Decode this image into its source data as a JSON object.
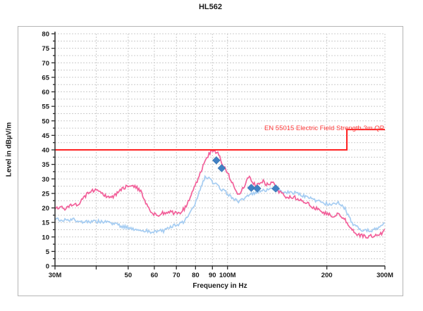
{
  "window": {
    "title": "HL562"
  },
  "chart_data": {
    "type": "line",
    "title": "HL562",
    "xlabel": "Frequency in Hz",
    "ylabel": "Level in dBµV/m",
    "x_scale": "log",
    "x_range_mhz": [
      30,
      300
    ],
    "ylim": [
      0,
      80
    ],
    "y_tick_step": 5,
    "y_minor_step": 2.5,
    "y_ticks": [
      0,
      5,
      10,
      15,
      20,
      25,
      30,
      35,
      40,
      45,
      50,
      55,
      60,
      65,
      70,
      75,
      80
    ],
    "x_ticks": [
      {
        "f_mhz": 30,
        "label": "30M"
      },
      {
        "f_mhz": 40,
        "label": ""
      },
      {
        "f_mhz": 50,
        "label": "50"
      },
      {
        "f_mhz": 60,
        "label": "60"
      },
      {
        "f_mhz": 70,
        "label": "70"
      },
      {
        "f_mhz": 80,
        "label": "80"
      },
      {
        "f_mhz": 90,
        "label": "90"
      },
      {
        "f_mhz": 100,
        "label": "100M"
      },
      {
        "f_mhz": 200,
        "label": "200"
      },
      {
        "f_mhz": 300,
        "label": "300M"
      }
    ],
    "grid": "dashed",
    "grid_vertical_mhz": [
      40,
      50,
      60,
      70,
      80,
      90,
      100,
      200,
      300
    ],
    "legend": "none",
    "colors": {
      "peak_trace": "#f2609a",
      "average_trace": "#a6cdf2",
      "marker": "#4181c4",
      "marker_edge": "#2f66a0",
      "limit_line": "#ff2222",
      "limit_label": "#ff3b3b",
      "grid": "#cccccc",
      "axis": "#2b2b2b",
      "tick_text": "#1a1a1a",
      "frame": "#b5b5b5"
    },
    "series": [
      {
        "name": "peak-trace",
        "style": "noisy-line",
        "points": [
          [
            30,
            19.5
          ],
          [
            31,
            20.3
          ],
          [
            32,
            19.8
          ],
          [
            33,
            20.5
          ],
          [
            34,
            21.2
          ],
          [
            35,
            21
          ],
          [
            36,
            22.5
          ],
          [
            37,
            24
          ],
          [
            38,
            25.3
          ],
          [
            39,
            26
          ],
          [
            40,
            26.5
          ],
          [
            41,
            25.8
          ],
          [
            42,
            24.5
          ],
          [
            43,
            23.8
          ],
          [
            44,
            24.2
          ],
          [
            45,
            24
          ],
          [
            46,
            24.8
          ],
          [
            47,
            25.6
          ],
          [
            48,
            26.5
          ],
          [
            49,
            27.2
          ],
          [
            50,
            27.8
          ],
          [
            51,
            28
          ],
          [
            52,
            27.6
          ],
          [
            53,
            27
          ],
          [
            54,
            26.2
          ],
          [
            55,
            25
          ],
          [
            56,
            23
          ],
          [
            57,
            21
          ],
          [
            58,
            19.5
          ],
          [
            59,
            18.3
          ],
          [
            60,
            17.8
          ],
          [
            61,
            17.3
          ],
          [
            62,
            17.8
          ],
          [
            63,
            18.4
          ],
          [
            64,
            18
          ],
          [
            65,
            17.6
          ],
          [
            66,
            18.2
          ],
          [
            67,
            18.8
          ],
          [
            68,
            18.4
          ],
          [
            69,
            18
          ],
          [
            70,
            18.4
          ],
          [
            71,
            18
          ],
          [
            72,
            18.3
          ],
          [
            73,
            19
          ],
          [
            74,
            19.8
          ],
          [
            75,
            21
          ],
          [
            76,
            22.3
          ],
          [
            77,
            23.8
          ],
          [
            78,
            25.2
          ],
          [
            79,
            26.6
          ],
          [
            80,
            28
          ],
          [
            81,
            29.5
          ],
          [
            82,
            31
          ],
          [
            83,
            32.5
          ],
          [
            84,
            34
          ],
          [
            85,
            35.2
          ],
          [
            86,
            36.4
          ],
          [
            87,
            37.5
          ],
          [
            88,
            38.5
          ],
          [
            89,
            39.2
          ],
          [
            90,
            39.6
          ],
          [
            91,
            39.7
          ],
          [
            92,
            39.5
          ],
          [
            93,
            39
          ],
          [
            94,
            38.2
          ],
          [
            95,
            37
          ],
          [
            96,
            35.8
          ],
          [
            97,
            34.6
          ],
          [
            98,
            33.6
          ],
          [
            99,
            32.8
          ],
          [
            100,
            32
          ],
          [
            102,
            30
          ],
          [
            104,
            27.8
          ],
          [
            106,
            25.8
          ],
          [
            108,
            24.6
          ],
          [
            110,
            25.5
          ],
          [
            112,
            27.2
          ],
          [
            114,
            29
          ],
          [
            115,
            30.2
          ],
          [
            116,
            30.6
          ],
          [
            118,
            29.6
          ],
          [
            120,
            28.4
          ],
          [
            122,
            27.4
          ],
          [
            124,
            28
          ],
          [
            126,
            28.8
          ],
          [
            128,
            29.2
          ],
          [
            130,
            28.6
          ],
          [
            132,
            28
          ],
          [
            134,
            28.4
          ],
          [
            136,
            29
          ],
          [
            138,
            28.2
          ],
          [
            140,
            27.4
          ],
          [
            142,
            26.4
          ],
          [
            145,
            25
          ],
          [
            148,
            24.3
          ],
          [
            150,
            24
          ],
          [
            153,
            23.8
          ],
          [
            156,
            24
          ],
          [
            160,
            23.6
          ],
          [
            164,
            23
          ],
          [
            168,
            22.6
          ],
          [
            172,
            22
          ],
          [
            176,
            21.2
          ],
          [
            180,
            20.6
          ],
          [
            184,
            20
          ],
          [
            188,
            19.4
          ],
          [
            192,
            18.9
          ],
          [
            196,
            18.4
          ],
          [
            200,
            18
          ],
          [
            204,
            17.6
          ],
          [
            208,
            17.4
          ],
          [
            212,
            17.6
          ],
          [
            216,
            17.9
          ],
          [
            220,
            17.4
          ],
          [
            224,
            16.8
          ],
          [
            228,
            15.8
          ],
          [
            232,
            14.4
          ],
          [
            236,
            13
          ],
          [
            240,
            12.2
          ],
          [
            245,
            11.3
          ],
          [
            250,
            10.8
          ],
          [
            255,
            10.4
          ],
          [
            260,
            10.2
          ],
          [
            265,
            10.2
          ],
          [
            270,
            10.3
          ],
          [
            275,
            10.4
          ],
          [
            280,
            10.5
          ],
          [
            285,
            10.7
          ],
          [
            290,
            11
          ],
          [
            294,
            11.4
          ],
          [
            297,
            12
          ],
          [
            300,
            12.6
          ]
        ]
      },
      {
        "name": "average-trace",
        "style": "noisy-line",
        "points": [
          [
            30,
            16.3
          ],
          [
            31,
            15.6
          ],
          [
            32,
            16
          ],
          [
            33,
            15.4
          ],
          [
            34,
            16
          ],
          [
            35,
            15.5
          ],
          [
            36,
            15.2
          ],
          [
            37,
            15.6
          ],
          [
            38,
            15.2
          ],
          [
            39,
            15.5
          ],
          [
            40,
            15.1
          ],
          [
            41,
            15.4
          ],
          [
            42,
            15
          ],
          [
            43,
            15.2
          ],
          [
            44,
            14.8
          ],
          [
            45,
            14.5
          ],
          [
            46,
            14.2
          ],
          [
            47,
            14
          ],
          [
            48,
            13.7
          ],
          [
            49,
            13.4
          ],
          [
            50,
            13.2
          ],
          [
            51,
            13
          ],
          [
            52,
            12.8
          ],
          [
            53,
            12.6
          ],
          [
            54,
            12.5
          ],
          [
            55,
            12.3
          ],
          [
            56,
            12.2
          ],
          [
            57,
            12
          ],
          [
            58,
            11.9
          ],
          [
            59,
            11.8
          ],
          [
            60,
            11.9
          ],
          [
            61,
            12.1
          ],
          [
            62,
            12.4
          ],
          [
            63,
            12.2
          ],
          [
            64,
            12
          ],
          [
            65,
            12.4
          ],
          [
            66,
            12.9
          ],
          [
            67,
            13.3
          ],
          [
            68,
            13.6
          ],
          [
            69,
            13.9
          ],
          [
            70,
            14.1
          ],
          [
            71,
            14.3
          ],
          [
            72,
            14.6
          ],
          [
            73,
            15
          ],
          [
            74,
            15.5
          ],
          [
            75,
            16.2
          ],
          [
            76,
            17
          ],
          [
            77,
            18
          ],
          [
            78,
            19.2
          ],
          [
            79,
            20.5
          ],
          [
            80,
            22
          ],
          [
            81,
            23.8
          ],
          [
            82,
            25.6
          ],
          [
            83,
            27.4
          ],
          [
            84,
            28.9
          ],
          [
            85,
            30
          ],
          [
            86,
            30.7
          ],
          [
            87,
            30.6
          ],
          [
            88,
            30.1
          ],
          [
            89,
            29.5
          ],
          [
            90,
            29
          ],
          [
            91,
            28.7
          ],
          [
            92,
            28.4
          ],
          [
            93,
            27.9
          ],
          [
            94,
            27.4
          ],
          [
            95,
            26.9
          ],
          [
            96,
            26.4
          ],
          [
            97,
            26
          ],
          [
            98,
            25.6
          ],
          [
            99,
            25.3
          ],
          [
            100,
            25
          ],
          [
            102,
            24.2
          ],
          [
            104,
            23.4
          ],
          [
            106,
            22.7
          ],
          [
            108,
            22.2
          ],
          [
            110,
            22.6
          ],
          [
            112,
            23.2
          ],
          [
            114,
            23.9
          ],
          [
            116,
            24.4
          ],
          [
            118,
            24.9
          ],
          [
            120,
            25.3
          ],
          [
            122,
            25.1
          ],
          [
            124,
            25.6
          ],
          [
            126,
            26.1
          ],
          [
            128,
            26.4
          ],
          [
            130,
            26.2
          ],
          [
            132,
            26
          ],
          [
            134,
            26.3
          ],
          [
            136,
            26.7
          ],
          [
            138,
            26.5
          ],
          [
            140,
            26.4
          ],
          [
            142,
            26.2
          ],
          [
            145,
            25.9
          ],
          [
            148,
            25.6
          ],
          [
            150,
            25.4
          ],
          [
            153,
            25.2
          ],
          [
            156,
            25.4
          ],
          [
            160,
            25.1
          ],
          [
            164,
            24.8
          ],
          [
            168,
            24.4
          ],
          [
            172,
            24
          ],
          [
            176,
            23.5
          ],
          [
            180,
            23.1
          ],
          [
            184,
            22.7
          ],
          [
            188,
            22.3
          ],
          [
            192,
            21.9
          ],
          [
            196,
            21.6
          ],
          [
            200,
            21.4
          ],
          [
            204,
            21.2
          ],
          [
            208,
            21.3
          ],
          [
            212,
            21.7
          ],
          [
            216,
            21.9
          ],
          [
            220,
            21.4
          ],
          [
            224,
            20.6
          ],
          [
            228,
            19.4
          ],
          [
            232,
            17.6
          ],
          [
            236,
            15.8
          ],
          [
            240,
            14.6
          ],
          [
            245,
            13.6
          ],
          [
            250,
            13
          ],
          [
            255,
            12.6
          ],
          [
            260,
            12.3
          ],
          [
            265,
            12.2
          ],
          [
            270,
            12.3
          ],
          [
            275,
            12.4
          ],
          [
            280,
            12.6
          ],
          [
            285,
            12.8
          ],
          [
            290,
            13.2
          ],
          [
            294,
            13.8
          ],
          [
            297,
            14.4
          ],
          [
            300,
            15
          ]
        ]
      }
    ],
    "markers": {
      "name": "final-measurement-markers",
      "shape": "diamond",
      "points_mhz_db": [
        [
          92.5,
          36.4
        ],
        [
          96,
          33.7
        ],
        [
          118,
          26.9
        ],
        [
          123,
          26.7
        ],
        [
          140,
          26.7
        ]
      ]
    },
    "limit": {
      "label": "EN 55015 Electric Field Strength 3m QP",
      "segments_mhz_db": [
        [
          30,
          40
        ],
        [
          230,
          40
        ],
        [
          230,
          47
        ],
        [
          300,
          47
        ]
      ]
    }
  }
}
